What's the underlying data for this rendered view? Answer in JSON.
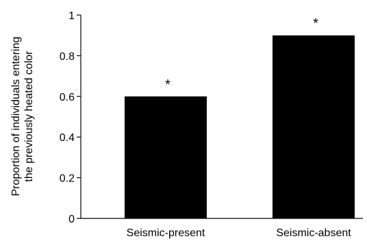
{
  "chart_data": {
    "type": "bar",
    "categories": [
      "Seismic-present",
      "Seismic-absent"
    ],
    "values": [
      0.6,
      0.9
    ],
    "annotations": [
      "*",
      "*"
    ],
    "ylabel_lines": [
      "Proportion of individuals entering",
      "the previously heated color"
    ],
    "ylim": [
      0,
      1
    ],
    "yticks": [
      "0",
      "0.2",
      "0.4",
      "0.6",
      "0.8",
      "1"
    ],
    "grid": false,
    "bar_color": "#000000"
  }
}
